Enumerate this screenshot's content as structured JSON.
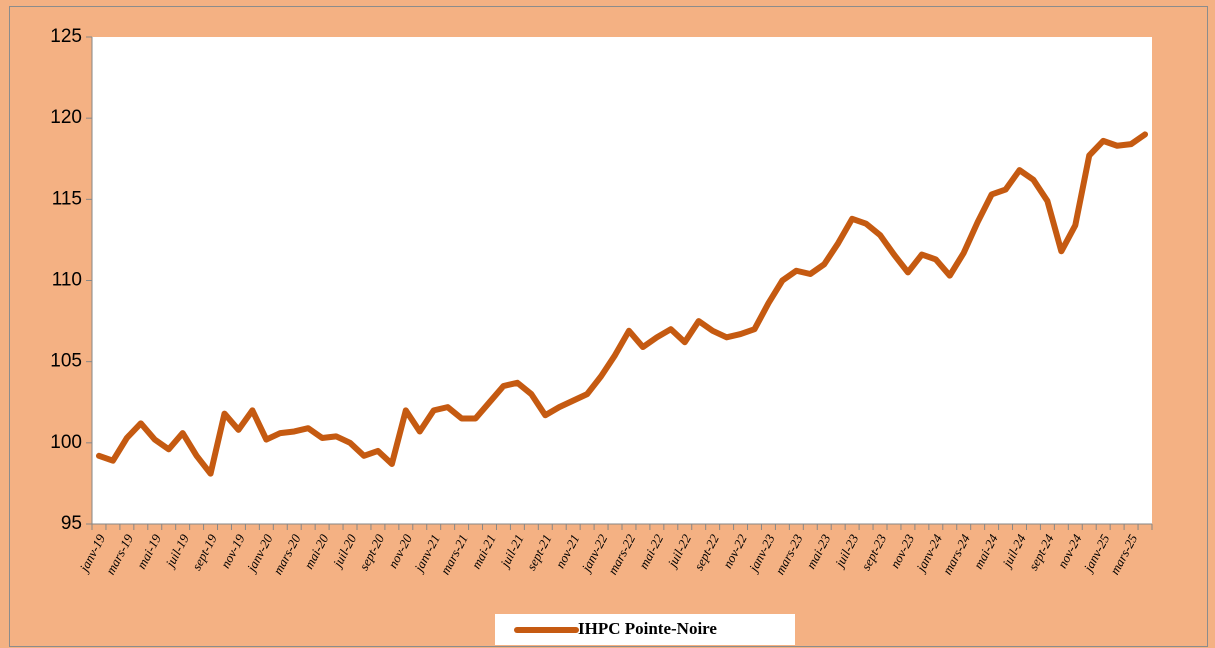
{
  "chart_data": {
    "type": "line",
    "categories": [
      "janv-19",
      null,
      "mars-19",
      null,
      "mai-19",
      null,
      "juil-19",
      null,
      "sept-19",
      null,
      "nov-19",
      null,
      "janv-20",
      null,
      "mars-20",
      null,
      "mai-20",
      null,
      "juil-20",
      null,
      "sept-20",
      null,
      "nov-20",
      null,
      "janv-21",
      null,
      "mars-21",
      null,
      "mai-21",
      null,
      "juil-21",
      null,
      "sept-21",
      null,
      "nov-21",
      null,
      "janv-22",
      null,
      "mars-22",
      null,
      "mai-22",
      null,
      "juil-22",
      null,
      "sept-22",
      null,
      "nov-22",
      null,
      "janv-23",
      null,
      "mars-23",
      null,
      "mai-23",
      null,
      "juil-23",
      null,
      "sept-23",
      null,
      "nov-23",
      null,
      "janv-24",
      null,
      "mars-24",
      null,
      "mai-24",
      null,
      "juil-24",
      null,
      "sept-24",
      null,
      "nov-24",
      null,
      "janv-25",
      null,
      "mars-25",
      null
    ],
    "series": [
      {
        "name": "IHPC Pointe-Noire",
        "color": "#c55a11",
        "values": [
          99.2,
          98.9,
          100.3,
          101.2,
          100.2,
          99.6,
          100.6,
          99.2,
          98.1,
          101.8,
          100.8,
          102.0,
          100.2,
          100.6,
          100.7,
          100.9,
          100.3,
          100.4,
          100.0,
          99.2,
          99.5,
          98.7,
          102.0,
          100.7,
          102.0,
          102.2,
          101.5,
          101.5,
          102.5,
          103.5,
          103.7,
          103.0,
          101.7,
          102.2,
          102.6,
          103.0,
          104.1,
          105.4,
          106.9,
          105.9,
          106.5,
          107.0,
          106.2,
          107.5,
          106.9,
          106.5,
          106.7,
          107.0,
          108.6,
          110.0,
          110.6,
          110.4,
          111.0,
          112.3,
          113.8,
          113.5,
          112.8,
          111.6,
          110.5,
          111.6,
          111.3,
          110.3,
          111.7,
          113.6,
          115.3,
          115.6,
          116.8,
          116.2,
          114.9,
          111.8,
          113.4,
          117.7,
          118.6,
          118.3,
          118.4,
          119.0
        ]
      }
    ],
    "ylim": [
      95,
      125
    ],
    "yticks": [
      95,
      100,
      105,
      110,
      115,
      120,
      125
    ],
    "legend": "bottom"
  }
}
